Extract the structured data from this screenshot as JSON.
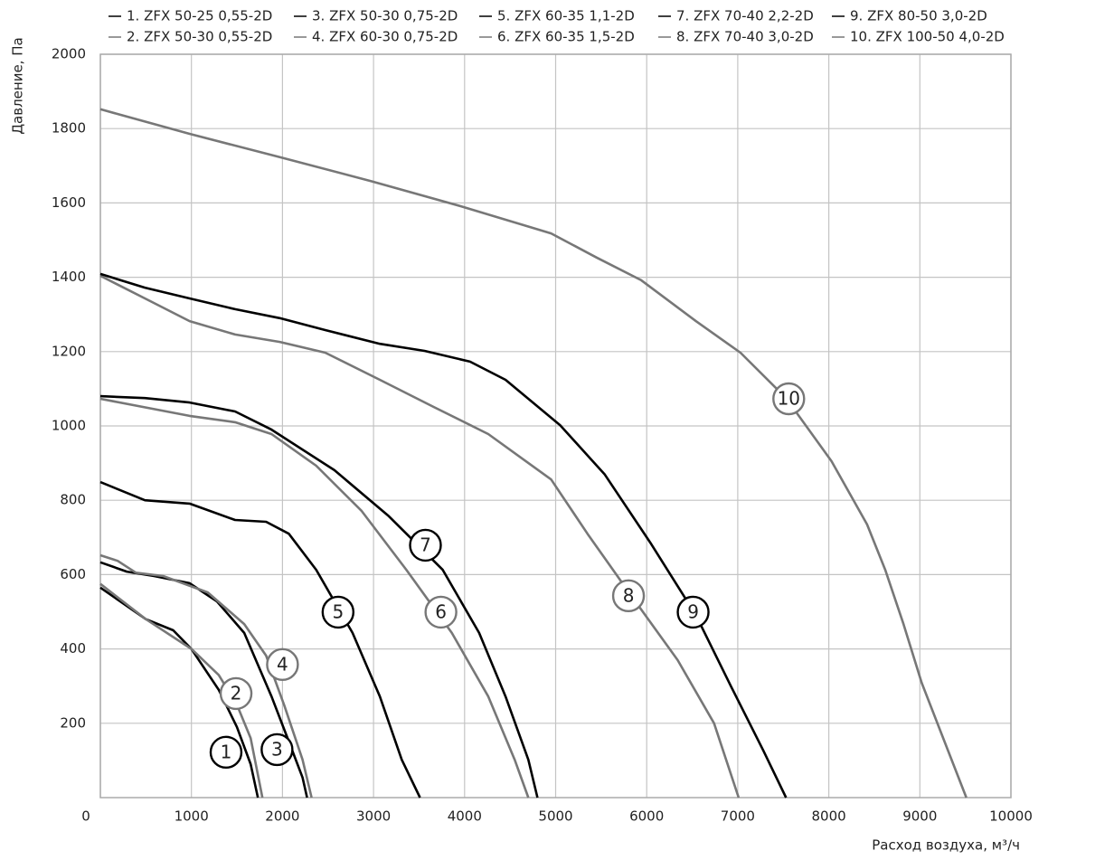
{
  "chart_data": {
    "type": "line",
    "x_label": "Расход воздуха, м³/ч",
    "y_label": "Давление, Па",
    "xlim": [
      0,
      10000
    ],
    "ylim": [
      0,
      2000
    ],
    "xticks": [
      0,
      1000,
      2000,
      3000,
      4000,
      5000,
      6000,
      7000,
      8000,
      9000,
      10000
    ],
    "yticks": [
      200,
      400,
      600,
      800,
      1000,
      1200,
      1400,
      1600,
      1800,
      2000
    ],
    "grid": true,
    "series": [
      {
        "name": "1. ZFX 50-25 0,55-2D",
        "color": "#000000",
        "label": "1",
        "label_at": [
          1380,
          122
        ],
        "x": [
          0,
          500,
          800,
          1000,
          1300,
          1500,
          1650,
          1730
        ],
        "values": [
          565,
          480,
          450,
          400,
          290,
          190,
          90,
          0
        ]
      },
      {
        "name": "2. ZFX 50-30 0,55-2D",
        "color": "#777777",
        "label": "2",
        "label_at": [
          1490,
          280
        ],
        "x": [
          0,
          500,
          1000,
          1300,
          1500,
          1650,
          1780
        ],
        "values": [
          575,
          480,
          400,
          330,
          250,
          160,
          0
        ]
      },
      {
        "name": "3. ZFX 50-30 0,75-2D",
        "color": "#000000",
        "label": "3",
        "label_at": [
          1940,
          129
        ],
        "x": [
          0,
          290,
          590,
          980,
          1280,
          1580,
          1880,
          2070,
          2220,
          2270
        ],
        "values": [
          633,
          608,
          596,
          577,
          528,
          443,
          272,
          151,
          54,
          0
        ]
      },
      {
        "name": "4. ZFX 60-30 0,75-2D",
        "color": "#777777",
        "label": "4",
        "label_at": [
          2000,
          358
        ],
        "x": [
          0,
          190,
          390,
          690,
          1180,
          1580,
          1820,
          2020,
          2220,
          2320
        ],
        "values": [
          652,
          637,
          605,
          596,
          552,
          467,
          382,
          248,
          102,
          0
        ]
      },
      {
        "name": "5. ZFX 60-35 1,1-2D",
        "color": "#000000",
        "label": "5",
        "label_at": [
          2610,
          499
        ],
        "x": [
          0,
          490,
          980,
          1480,
          1820,
          2070,
          2370,
          2770,
          3070,
          3310,
          3510
        ],
        "values": [
          849,
          800,
          791,
          747,
          742,
          710,
          613,
          443,
          272,
          102,
          0
        ]
      },
      {
        "name": "6. ZFX 60-35 1,5-2D",
        "color": "#777777",
        "label": "6",
        "label_at": [
          3740,
          499
        ],
        "x": [
          0,
          980,
          1480,
          1880,
          2370,
          2870,
          3360,
          3860,
          4260,
          4550,
          4700
        ],
        "values": [
          1073,
          1027,
          1010,
          978,
          893,
          771,
          613,
          443,
          272,
          102,
          0
        ]
      },
      {
        "name": "7. ZFX 70-40 2,2-2D",
        "color": "#000000",
        "label": "7",
        "label_at": [
          3570,
          679
        ],
        "x": [
          0,
          490,
          980,
          1480,
          1880,
          2570,
          3160,
          3760,
          4160,
          4450,
          4700,
          4800
        ],
        "values": [
          1080,
          1075,
          1063,
          1039,
          990,
          881,
          759,
          613,
          443,
          272,
          102,
          0
        ]
      },
      {
        "name": "8. ZFX 70-40 3,0-2D",
        "color": "#777777",
        "label": "8",
        "label_at": [
          5800,
          543
        ],
        "x": [
          0,
          490,
          980,
          1480,
          1970,
          2470,
          3070,
          3660,
          4260,
          4950,
          5350,
          5840,
          6340,
          6740,
          7010
        ],
        "values": [
          1404,
          1343,
          1282,
          1246,
          1226,
          1197,
          1124,
          1051,
          978,
          856,
          710,
          540,
          370,
          200,
          0
        ]
      },
      {
        "name": "9. ZFX 80-50 3,0-2D",
        "color": "#000000",
        "label": "9",
        "label_at": [
          6510,
          499
        ],
        "x": [
          0,
          490,
          980,
          1480,
          1970,
          2470,
          3070,
          3560,
          4060,
          4450,
          5050,
          5540,
          6040,
          6540,
          6930,
          7280,
          7530
        ],
        "values": [
          1409,
          1372,
          1343,
          1314,
          1290,
          1258,
          1221,
          1202,
          1173,
          1124,
          1002,
          869,
          686,
          491,
          297,
          127,
          0
        ]
      },
      {
        "name": "10. ZFX 100-50 4,0-2D",
        "color": "#777777",
        "label": "10",
        "label_at": [
          7560,
          1073
        ],
        "x": [
          0,
          980,
          1970,
          2970,
          3960,
          4950,
          5450,
          5940,
          6540,
          7030,
          7530,
          8030,
          8420,
          8620,
          8820,
          9020,
          9270,
          9510
        ],
        "values": [
          1852,
          1786,
          1723,
          1659,
          1591,
          1518,
          1453,
          1392,
          1282,
          1197,
          1075,
          905,
          735,
          613,
          467,
          309,
          151,
          0
        ]
      }
    ]
  }
}
